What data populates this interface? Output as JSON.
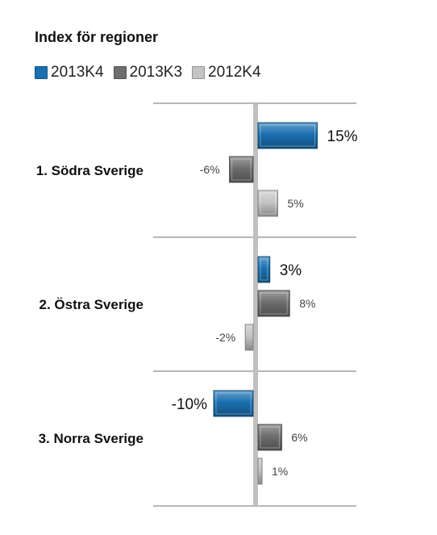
{
  "chart_data": {
    "type": "bar",
    "orientation": "horizontal",
    "title": "Index för regioner",
    "categories": [
      "1. Södra Sverige",
      "2. Östra Sverige",
      "3. Norra Sverige"
    ],
    "series": [
      {
        "name": "2013K4",
        "values": [
          15,
          3,
          -10
        ],
        "labels": [
          "15%",
          "3%",
          "-10%"
        ],
        "color": "#1a6fb0"
      },
      {
        "name": "2013K3",
        "values": [
          -6,
          8,
          6
        ],
        "labels": [
          "-6%",
          "8%",
          "6%"
        ],
        "color": "#6e6e6e"
      },
      {
        "name": "2012K4",
        "values": [
          5,
          -2,
          1
        ],
        "labels": [
          "5%",
          "-2%",
          "1%"
        ],
        "color": "#c4c4c4"
      }
    ],
    "legend_position": "top-left",
    "grid": false,
    "zero_line_color": "#c0c0c0"
  }
}
